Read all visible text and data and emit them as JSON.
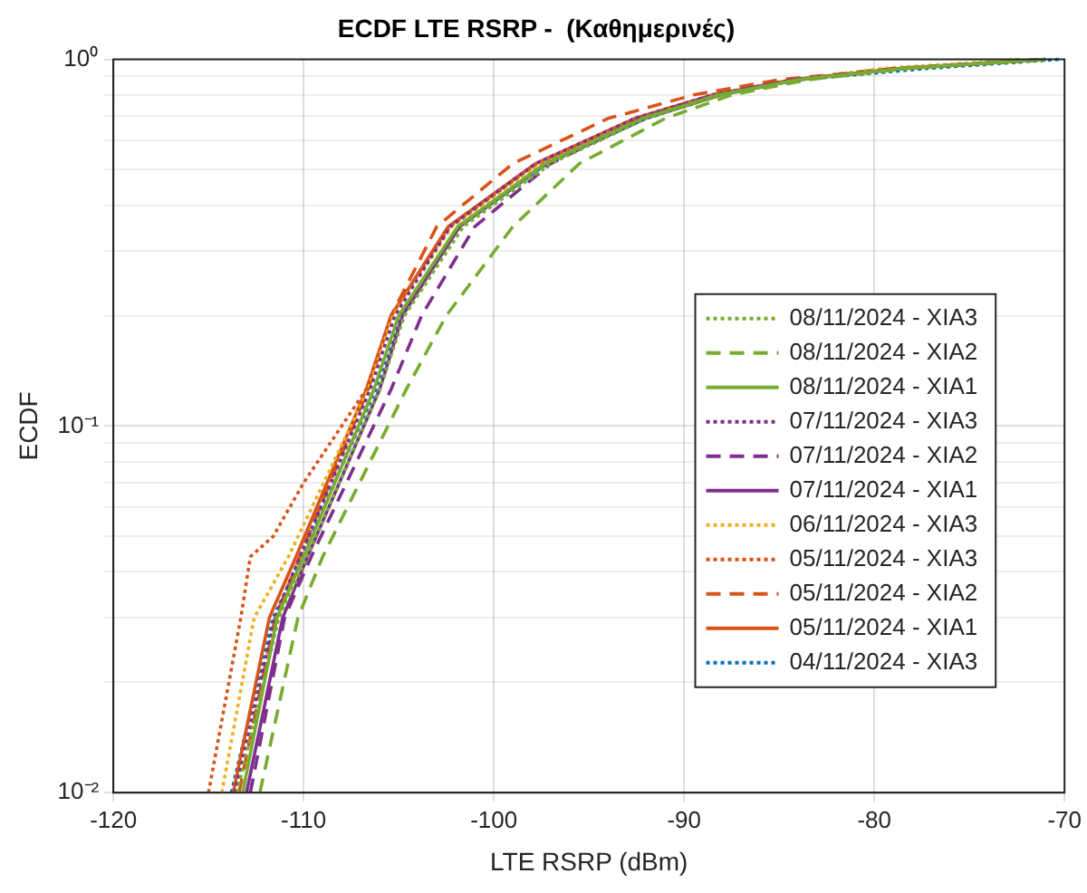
{
  "chart_data": {
    "type": "line",
    "title": "ECDF LTE RSRP -  (Καθημερινές)",
    "xlabel": "LTE RSRP (dBm)",
    "ylabel": "ECDF",
    "log": "y",
    "grid": true,
    "legend": "right",
    "marker": "none",
    "xlim": [
      -120,
      -70
    ],
    "xticks": [
      -120,
      -110,
      -100,
      -90,
      -80,
      -70
    ],
    "ylim": [
      0.01,
      1
    ],
    "yticks": [
      {
        "value": 0.01,
        "label": "10⁻²"
      },
      {
        "value": 0.02,
        "label": null
      },
      {
        "value": 0.03,
        "label": null
      },
      {
        "value": 0.04,
        "label": null
      },
      {
        "value": 0.05,
        "label": null
      },
      {
        "value": 0.06,
        "label": null
      },
      {
        "value": 0.07,
        "label": null
      },
      {
        "value": 0.08,
        "label": null
      },
      {
        "value": 0.09,
        "label": null
      },
      {
        "value": 0.1,
        "label": "10⁻¹"
      },
      {
        "value": 0.2,
        "label": null
      },
      {
        "value": 0.3,
        "label": null
      },
      {
        "value": 0.4,
        "label": null
      },
      {
        "value": 0.5,
        "label": null
      },
      {
        "value": 0.6,
        "label": null
      },
      {
        "value": 0.7,
        "label": null
      },
      {
        "value": 0.8,
        "label": null
      },
      {
        "value": 0.9,
        "label": null
      },
      {
        "value": 1,
        "label": "10⁰"
      }
    ],
    "series": [
      {
        "name": "08/11/2024 - XIA3",
        "color": "#77ac30",
        "line_style": "dotted",
        "x": [
          -113.5,
          -111.3,
          -109.8,
          -106,
          -104.7,
          -101.6,
          -97,
          -92,
          -88,
          -84,
          -78.4,
          -71
        ],
        "values": [
          0.01,
          0.03,
          0.044,
          0.126,
          0.2,
          0.35,
          0.52,
          0.69,
          0.8,
          0.88,
          0.945,
          1
        ]
      },
      {
        "name": "08/11/2024 - XIA2",
        "color": "#77ac30",
        "line_style": "dashed",
        "x": [
          -112.3,
          -110.3,
          -109,
          -104.6,
          -102.5,
          -99,
          -95.5,
          -91,
          -87.5,
          -83.5,
          -78.2,
          -71
        ],
        "values": [
          0.01,
          0.03,
          0.044,
          0.126,
          0.2,
          0.35,
          0.52,
          0.69,
          0.8,
          0.88,
          0.945,
          1
        ]
      },
      {
        "name": "08/11/2024 - XIA1",
        "color": "#77ac30",
        "line_style": "solid",
        "x": [
          -113.2,
          -111.4,
          -110,
          -106.3,
          -105,
          -101.9,
          -97.3,
          -92.2,
          -88.2,
          -84,
          -78.5,
          -71
        ],
        "values": [
          0.01,
          0.03,
          0.044,
          0.126,
          0.2,
          0.35,
          0.52,
          0.69,
          0.8,
          0.88,
          0.945,
          1
        ]
      },
      {
        "name": "07/11/2024 - XIA3",
        "color": "#7e2f8e",
        "line_style": "dotted",
        "x": [
          -113.6,
          -111.5,
          -110.2,
          -106.5,
          -105.2,
          -102.3,
          -97.8,
          -92.6,
          -88.5,
          -84.3,
          -78.6,
          -71
        ],
        "values": [
          0.01,
          0.03,
          0.044,
          0.126,
          0.2,
          0.35,
          0.52,
          0.69,
          0.8,
          0.88,
          0.945,
          1
        ]
      },
      {
        "name": "07/11/2024 - XIA2",
        "color": "#7e2f8e",
        "line_style": "dashed",
        "x": [
          -112.8,
          -111,
          -109.6,
          -105.4,
          -103.8,
          -101,
          -97,
          -92.3,
          -88.4,
          -84.2,
          -78.6,
          -71
        ],
        "values": [
          0.01,
          0.03,
          0.044,
          0.126,
          0.2,
          0.35,
          0.52,
          0.69,
          0.8,
          0.88,
          0.945,
          1
        ]
      },
      {
        "name": "07/11/2024 - XIA1",
        "color": "#7e2f8e",
        "line_style": "solid",
        "x": [
          -113,
          -111.1,
          -109.8,
          -106,
          -104.8,
          -101.8,
          -97.3,
          -92.1,
          -88.1,
          -84,
          -78.5,
          -71
        ],
        "values": [
          0.01,
          0.03,
          0.044,
          0.126,
          0.2,
          0.35,
          0.52,
          0.69,
          0.8,
          0.88,
          0.945,
          1
        ]
      },
      {
        "name": "06/11/2024 - XIA3",
        "color": "#edb120",
        "line_style": "dotted",
        "x": [
          -114.3,
          -112.6,
          -110.8,
          -106.6,
          -105.3,
          -102.2,
          -97.6,
          -92.4,
          -88.3,
          -84.1,
          -79.6,
          -72.2
        ],
        "values": [
          0.01,
          0.03,
          0.044,
          0.126,
          0.2,
          0.35,
          0.52,
          0.69,
          0.8,
          0.88,
          0.945,
          1
        ]
      },
      {
        "name": "05/11/2024 - XIA3",
        "color": "#d95319",
        "line_style": "dotted",
        "x": [
          -115,
          -113.3,
          -112.8,
          -111.6,
          -110,
          -106.7,
          -105.4,
          -102.3,
          -97.7,
          -92.5,
          -88.4,
          -84.2,
          -78.6,
          -71
        ],
        "values": [
          0.01,
          0.03,
          0.044,
          0.05,
          0.07,
          0.126,
          0.2,
          0.35,
          0.52,
          0.69,
          0.8,
          0.88,
          0.945,
          1
        ]
      },
      {
        "name": "05/11/2024 - XIA2",
        "color": "#d95319",
        "line_style": "dashed",
        "x": [
          -113.4,
          -111.5,
          -110.2,
          -106.6,
          -105.4,
          -103,
          -99,
          -94,
          -89.5,
          -85,
          -79,
          -71
        ],
        "values": [
          0.01,
          0.03,
          0.044,
          0.126,
          0.2,
          0.35,
          0.52,
          0.69,
          0.8,
          0.88,
          0.945,
          1
        ]
      },
      {
        "name": "05/11/2024 - XIA1",
        "color": "#d95319",
        "line_style": "solid",
        "x": [
          -113.7,
          -111.8,
          -110.4,
          -106.7,
          -105.4,
          -102.4,
          -97.8,
          -92.6,
          -88.5,
          -84.3,
          -78.6,
          -71
        ],
        "values": [
          0.01,
          0.03,
          0.044,
          0.126,
          0.2,
          0.35,
          0.52,
          0.69,
          0.8,
          0.88,
          0.945,
          1
        ]
      },
      {
        "name": "04/11/2024 - XIA3",
        "color": "#0072bd",
        "line_style": "dotted",
        "x": [
          -113.8,
          -111.6,
          -110.1,
          -106.2,
          -104.9,
          -101.8,
          -97.2,
          -92,
          -88.1,
          -84,
          -77.2,
          -70.3
        ],
        "values": [
          0.01,
          0.03,
          0.044,
          0.126,
          0.2,
          0.35,
          0.52,
          0.69,
          0.8,
          0.88,
          0.945,
          1
        ]
      }
    ]
  }
}
